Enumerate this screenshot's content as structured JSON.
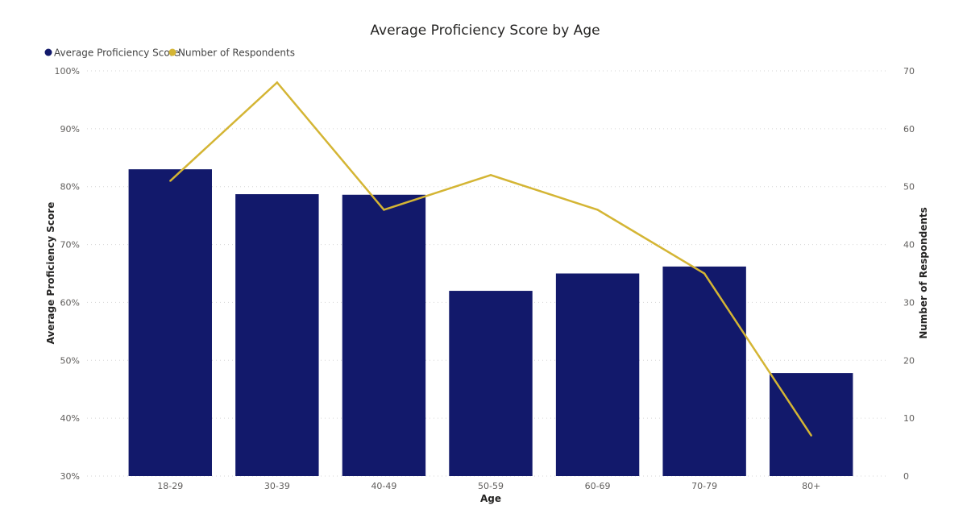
{
  "chart_data": {
    "type": "bar",
    "title": "Average Proficiency Score by Age",
    "xlabel": "Age",
    "ylabel": "Average Proficiency Score",
    "y2label": "Number of Respondents",
    "categories": [
      "18-29",
      "30-39",
      "40-49",
      "50-59",
      "60-69",
      "70-79",
      "80+"
    ],
    "ylim": [
      0.3,
      1.0
    ],
    "y_ticks": [
      0.3,
      0.4,
      0.5,
      0.6,
      0.7,
      0.8,
      0.9,
      1.0
    ],
    "y_tick_labels": [
      "30%",
      "40%",
      "50%",
      "60%",
      "70%",
      "80%",
      "90%",
      "100%"
    ],
    "y2lim": [
      0,
      70
    ],
    "y2_ticks": [
      0,
      10,
      20,
      30,
      40,
      50,
      60,
      70
    ],
    "y2_tick_labels": [
      "0",
      "10",
      "20",
      "30",
      "40",
      "50",
      "60",
      "70"
    ],
    "grid": true,
    "legend_position": "top-left",
    "series": [
      {
        "name": "Average Proficiency Score",
        "type": "bar",
        "axis": "left",
        "color": "#12196b",
        "values": [
          0.83,
          0.787,
          0.786,
          0.62,
          0.65,
          0.662,
          0.478
        ]
      },
      {
        "name": "Number of Respondents",
        "type": "line",
        "axis": "right",
        "color": "#d4b534",
        "values": [
          51,
          68,
          46,
          52,
          46,
          35,
          7
        ]
      }
    ]
  }
}
